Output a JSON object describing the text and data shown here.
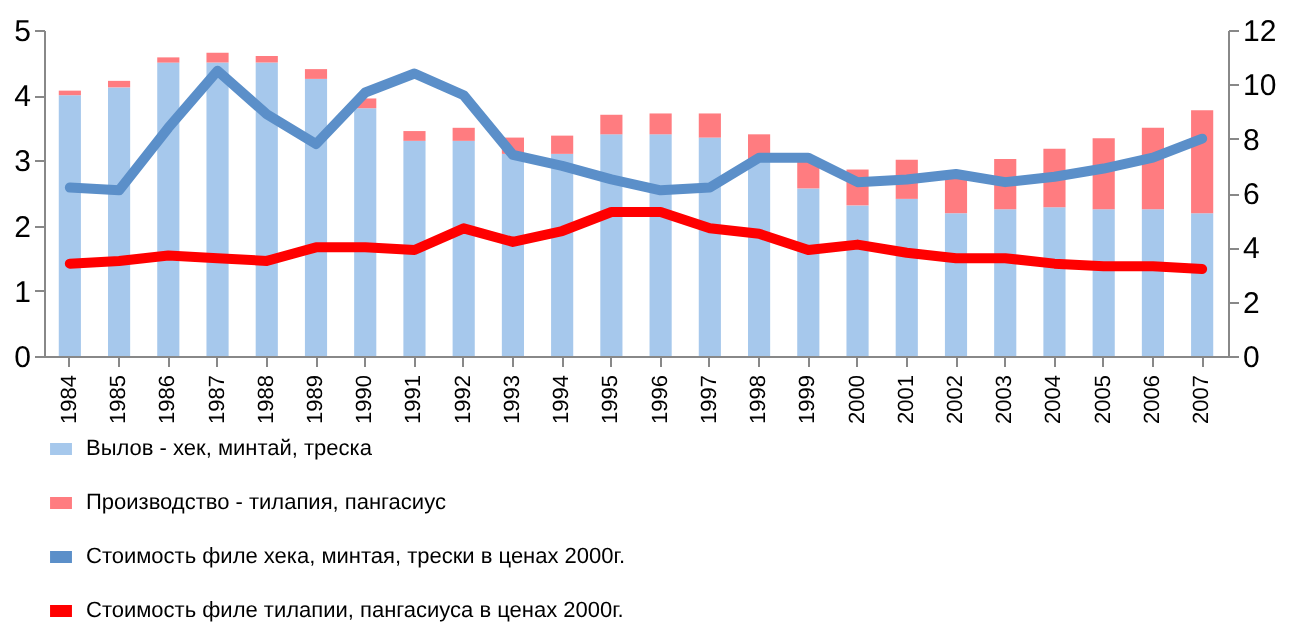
{
  "chart_data": {
    "type": "bar",
    "stacked": true,
    "legend": "bottom",
    "grid": false,
    "categories": [
      "1984",
      "1985",
      "1986",
      "1987",
      "1988",
      "1989",
      "1990",
      "1991",
      "1992",
      "1993",
      "1994",
      "1995",
      "1996",
      "1997",
      "1998",
      "1999",
      "2000",
      "2001",
      "2002",
      "2003",
      "2004",
      "2005",
      "2006",
      "2007"
    ],
    "ylim": [
      0,
      5
    ],
    "yticks": [
      0,
      1,
      2,
      3,
      4,
      5
    ],
    "y2lim": [
      0,
      12
    ],
    "y2ticks": [
      0,
      2,
      4,
      6,
      8,
      10,
      12
    ],
    "series": [
      {
        "name": "Вылов - хек, минтай, треска",
        "color": "#a6c8ec",
        "values": [
          4.0,
          4.12,
          4.5,
          4.5,
          4.5,
          4.25,
          3.8,
          3.3,
          3.3,
          3.1,
          3.1,
          3.4,
          3.4,
          3.35,
          3.0,
          2.57,
          2.31,
          2.41,
          2.19,
          2.25,
          2.28,
          2.25,
          2.25,
          2.19
        ]
      },
      {
        "name": "Производство - тилапия, пангасиус",
        "color": "#ff7c80",
        "values": [
          0.07,
          0.1,
          0.08,
          0.15,
          0.1,
          0.15,
          0.15,
          0.15,
          0.2,
          0.25,
          0.28,
          0.3,
          0.32,
          0.37,
          0.4,
          0.43,
          0.55,
          0.6,
          0.6,
          0.77,
          0.9,
          1.09,
          1.25,
          1.58
        ]
      },
      {
        "name": "Стоимость филе хека, минтая, трески в ценах 2000г.",
        "type": "line",
        "axis": "y2",
        "color": "#5b8fc9",
        "values": [
          6.2,
          6.1,
          8.4,
          10.5,
          8.9,
          7.8,
          9.7,
          10.4,
          9.6,
          7.4,
          7.0,
          6.5,
          6.1,
          6.2,
          7.3,
          7.3,
          6.4,
          6.5,
          6.7,
          6.4,
          6.6,
          6.9,
          7.3,
          8.0
        ]
      },
      {
        "name": "Стоимость филе тилапии, пангасиуса в ценах 2000г.",
        "type": "line",
        "axis": "y2",
        "color": "#ff0000",
        "values": [
          3.4,
          3.5,
          3.7,
          3.6,
          3.5,
          4.0,
          4.0,
          3.9,
          4.7,
          4.2,
          4.6,
          5.3,
          5.3,
          4.7,
          4.5,
          3.9,
          4.1,
          3.8,
          3.6,
          3.6,
          3.4,
          3.3,
          3.3,
          3.2
        ]
      }
    ]
  }
}
